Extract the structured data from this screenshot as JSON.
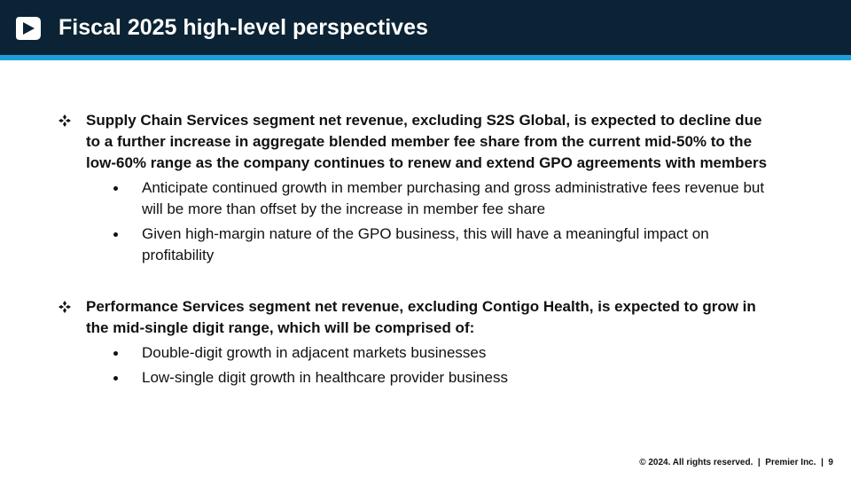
{
  "header": {
    "title": "Fiscal 2025 high-level perspectives"
  },
  "sections": [
    {
      "text": "Supply Chain Services segment net revenue, excluding S2S Global, is expected to decline due to a further increase in aggregate blended member fee share from the current mid-50% to the low-60% range as the company continues to renew and extend GPO agreements with members",
      "items": [
        "Anticipate continued growth in member purchasing and gross administrative fees revenue but will be more than offset by the increase in member fee share",
        "Given high-margin nature of the GPO business, this will have a meaningful impact on profitability"
      ]
    },
    {
      "text": "Performance Services segment net revenue, excluding Contigo Health, is expected to grow in the mid-single digit range, which will be comprised of:",
      "items": [
        "Double-digit growth in adjacent markets businesses",
        "Low-single digit growth in healthcare provider business"
      ]
    }
  ],
  "footer": {
    "text": "© 2024. All rights reserved.  |  Premier Inc.  |  9"
  }
}
